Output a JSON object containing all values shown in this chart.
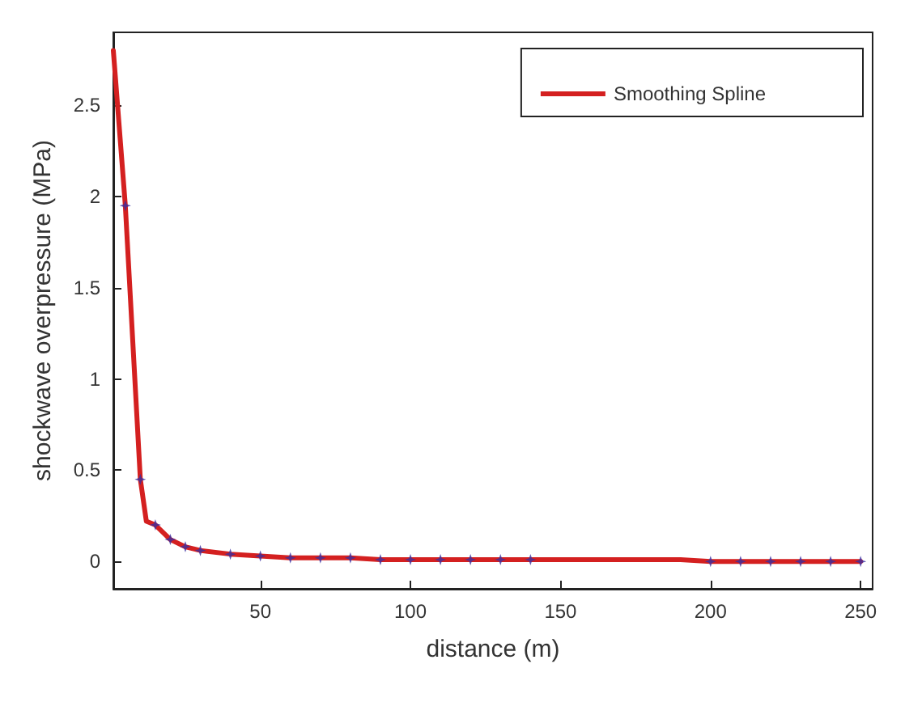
{
  "chart_data": {
    "type": "line",
    "xlabel": "distance (m)",
    "ylabel": "shockwave overpressure (MPa)",
    "xlim": [
      1,
      254
    ],
    "xticks": [
      50,
      100,
      150,
      200,
      250
    ],
    "ylim": [
      -0.15,
      2.9
    ],
    "yticks": [
      0,
      0.5,
      1,
      1.5,
      2,
      2.5
    ],
    "grid": false,
    "legend": "top right",
    "series": [
      {
        "name": "Smoothing Spline",
        "color": "#d42020",
        "marker": "none",
        "x": [
          1,
          5,
          10,
          12,
          15,
          20,
          25,
          30,
          40,
          50,
          60,
          70,
          80,
          90,
          100,
          110,
          120,
          130,
          140,
          150,
          160,
          170,
          180,
          190,
          200,
          210,
          220,
          230,
          240,
          250
        ],
        "values": [
          2.8,
          1.95,
          0.45,
          0.22,
          0.2,
          0.12,
          0.08,
          0.06,
          0.04,
          0.03,
          0.02,
          0.02,
          0.02,
          0.01,
          0.01,
          0.01,
          0.01,
          0.01,
          0.01,
          0.01,
          0.01,
          0.01,
          0.01,
          0.01,
          0,
          0,
          0,
          0,
          0,
          0
        ]
      },
      {
        "type": "scatter",
        "color": "#3a2ea0",
        "marker": "star",
        "x": [
          5,
          10,
          15,
          20,
          25,
          30,
          40,
          50,
          60,
          70,
          80,
          90,
          100,
          110,
          120,
          130,
          140,
          200,
          210,
          220,
          230,
          240,
          250
        ],
        "values": [
          1.95,
          0.45,
          0.2,
          0.12,
          0.08,
          0.06,
          0.04,
          0.03,
          0.02,
          0.02,
          0.02,
          0.01,
          0.01,
          0.01,
          0.01,
          0.01,
          0.01,
          0,
          0,
          0,
          0,
          0,
          0
        ]
      }
    ]
  }
}
